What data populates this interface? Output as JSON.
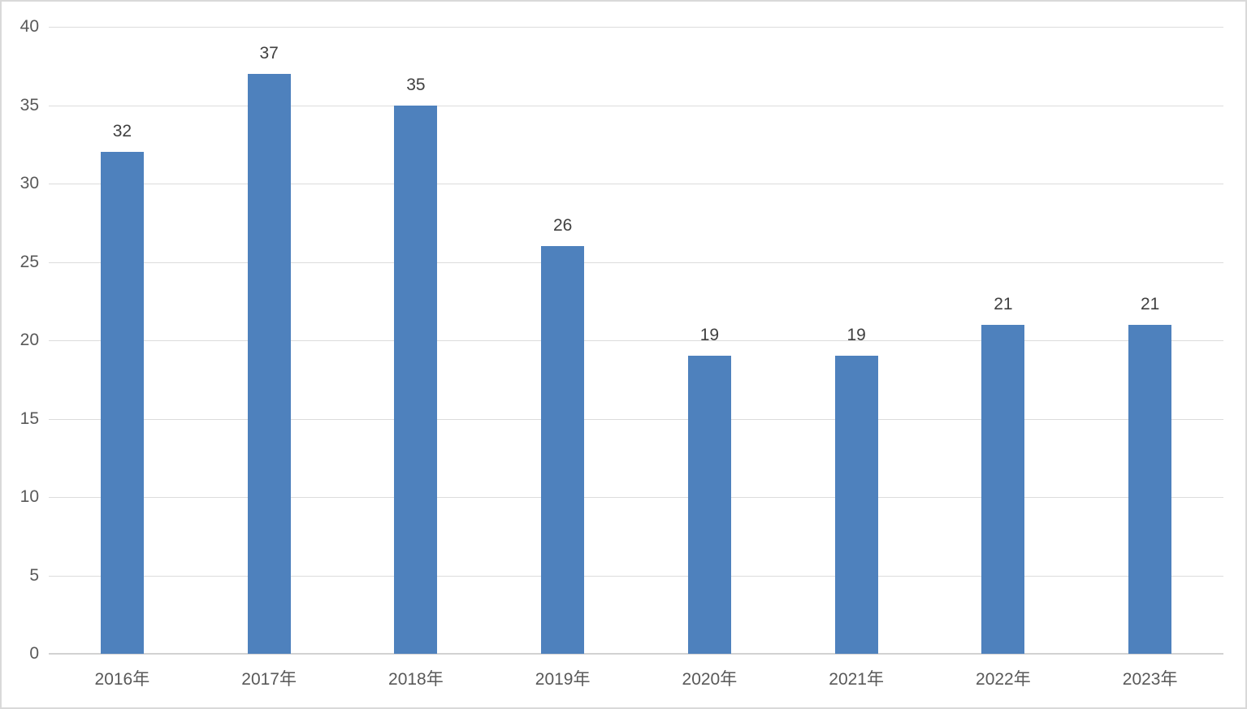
{
  "chart_data": {
    "type": "bar",
    "categories": [
      "2016年",
      "2017年",
      "2018年",
      "2019年",
      "2020年",
      "2021年",
      "2022年",
      "2023年"
    ],
    "values": [
      32,
      37,
      35,
      26,
      19,
      19,
      21,
      21
    ],
    "data_labels": [
      "32",
      "37",
      "35",
      "26",
      "19",
      "19",
      "21",
      "21"
    ],
    "title": "",
    "xlabel": "",
    "ylabel": "",
    "ylim": [
      0,
      40
    ],
    "yticks": [
      0,
      5,
      10,
      15,
      20,
      25,
      30,
      35,
      40
    ],
    "grid": true,
    "legend_position": "none",
    "colors": {
      "bar_fill": "#4E81BD",
      "gridline": "#DCDCDC",
      "axis_line": "#D2D2D2",
      "y_tick_label": "#595959",
      "x_tick_label": "#595959",
      "data_label": "#404040",
      "background": "#FFFFFF",
      "frame_border": "#D9D9D9"
    }
  }
}
